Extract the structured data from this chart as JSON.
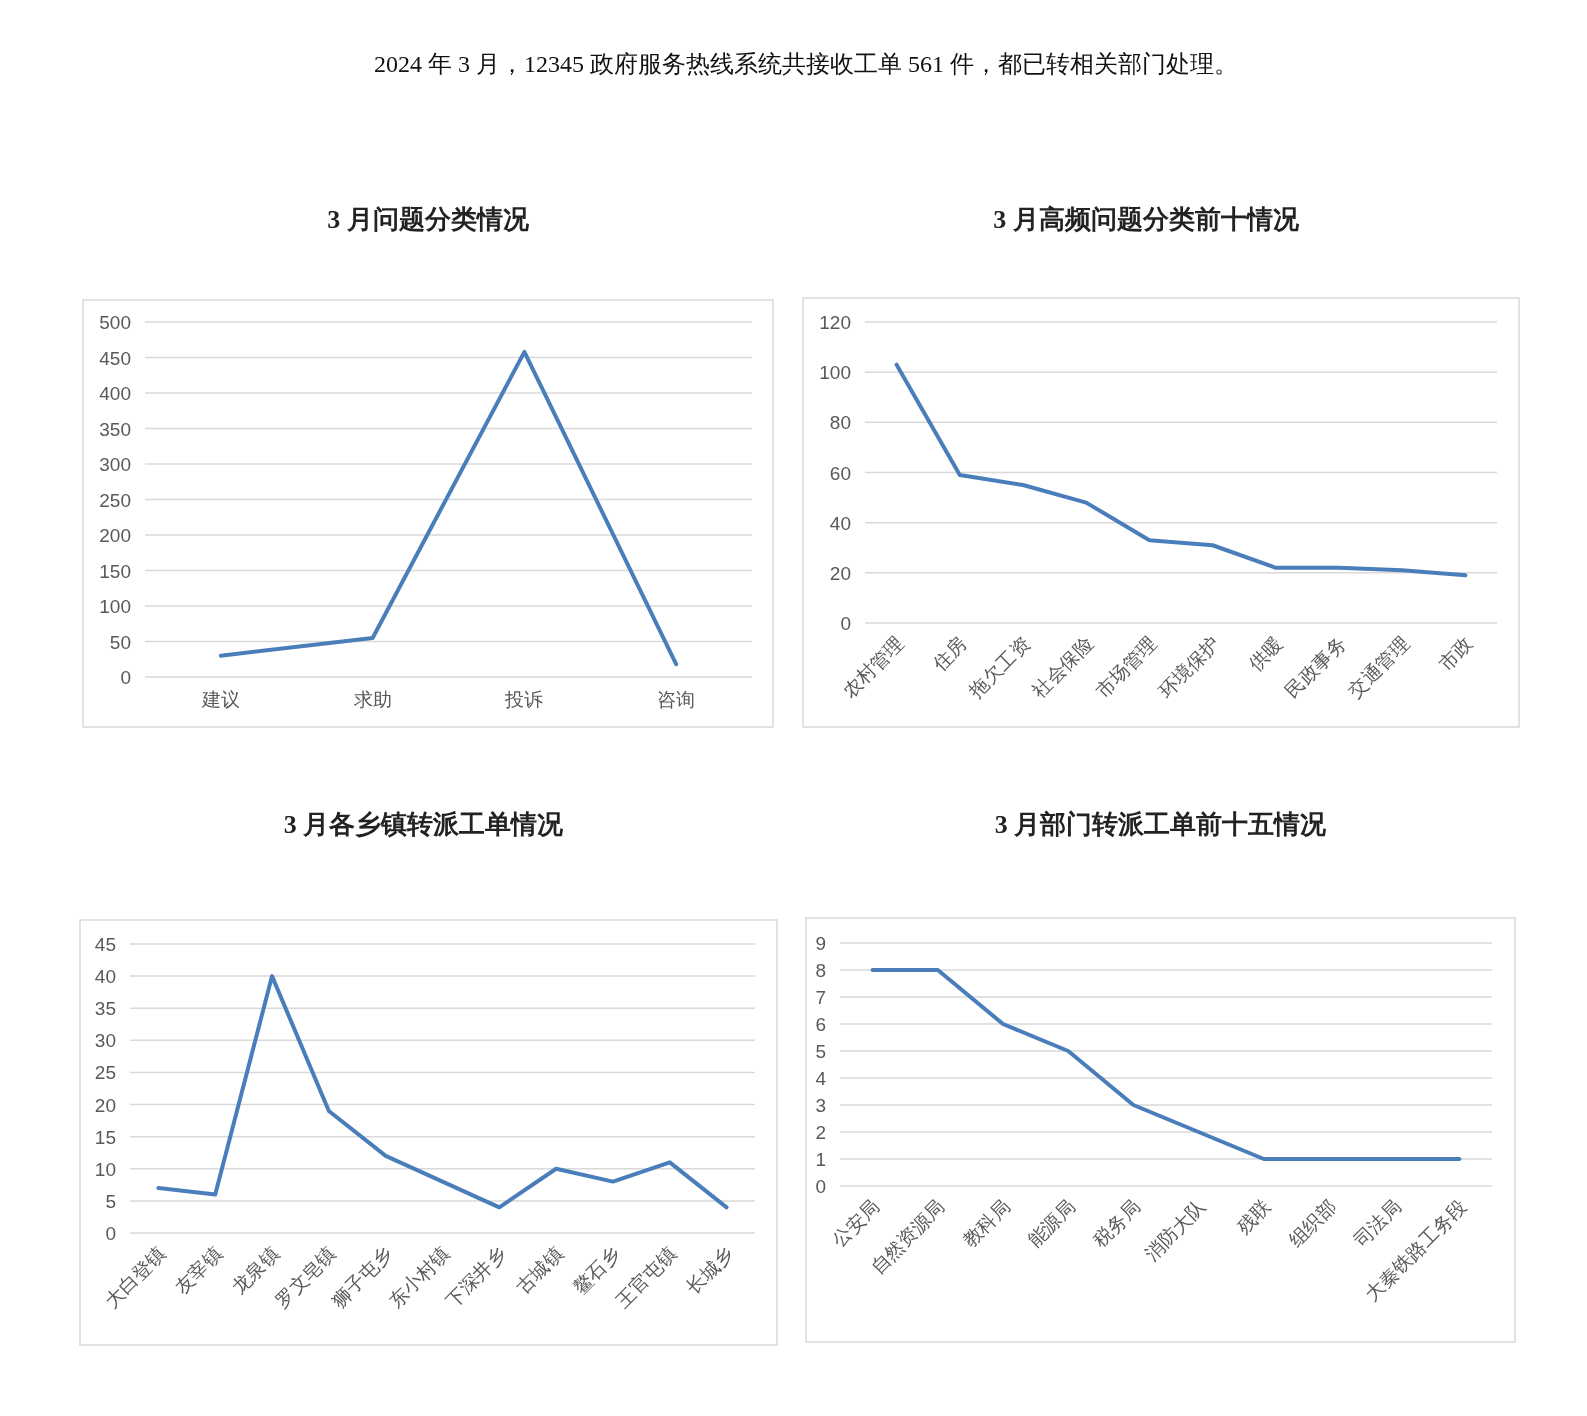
{
  "chart_data": [
    {
      "type": "line",
      "title": "3 月问题分类情况",
      "annotations": [
        "2024 年 3 月，12345 政府服务热线系统共接收工单 561 件，都已转相关部门处理。"
      ],
      "categories": [
        "建议",
        "求助",
        "投诉",
        "咨询"
      ],
      "series": [
        {
          "color": "#4a7ebb",
          "values": [
            30,
            55,
            458,
            18
          ]
        }
      ],
      "ylim": [
        0,
        500
      ],
      "yticks": [
        0,
        50,
        100,
        150,
        200,
        250,
        300,
        350,
        400,
        450,
        500
      ],
      "grid": "y"
    },
    {
      "type": "line",
      "title": "3 月高频问题分类前十情况",
      "categories": [
        "农村管理",
        "住房",
        "拖欠工资",
        "社会保险",
        "市场管理",
        "环境保护",
        "供暖",
        "民政事务",
        "交通管理",
        "市政"
      ],
      "series": [
        {
          "color": "#4a7ebb",
          "values": [
            103,
            59,
            55,
            48,
            33,
            31,
            22,
            22,
            21,
            19
          ]
        }
      ],
      "ylim": [
        0,
        120
      ],
      "yticks": [
        0,
        20,
        40,
        60,
        80,
        100,
        120
      ],
      "grid": "y"
    },
    {
      "type": "line",
      "title": "3 月各乡镇转派工单情况",
      "categories": [
        "大白登镇",
        "友宰镇",
        "龙泉镇",
        "罗文皂镇",
        "狮子屯乡",
        "东小村镇",
        "下深井乡",
        "古城镇",
        "鳌石乡",
        "王官屯镇",
        "长城乡"
      ],
      "series": [
        {
          "color": "#4a7ebb",
          "values": [
            7,
            6,
            40,
            19,
            12,
            8,
            4,
            10,
            8,
            11,
            4
          ]
        }
      ],
      "ylim": [
        0,
        45
      ],
      "yticks": [
        0,
        5,
        10,
        15,
        20,
        25,
        30,
        35,
        40,
        45
      ],
      "grid": "y"
    },
    {
      "type": "line",
      "title": "3 月部门转派工单前十五情况",
      "categories": [
        "公安局",
        "自然资源局",
        "教科局",
        "能源局",
        "税务局",
        "消防大队",
        "残联",
        "组织部",
        "司法局",
        "大秦铁路工务段"
      ],
      "series": [
        {
          "color": "#4a7ebb",
          "values": [
            8,
            8,
            6,
            5,
            3,
            2,
            1,
            1,
            1,
            1
          ]
        }
      ],
      "ylim": [
        0,
        9
      ],
      "yticks": [
        0,
        1,
        2,
        3,
        4,
        5,
        6,
        7,
        8,
        9
      ],
      "grid": "y"
    }
  ]
}
